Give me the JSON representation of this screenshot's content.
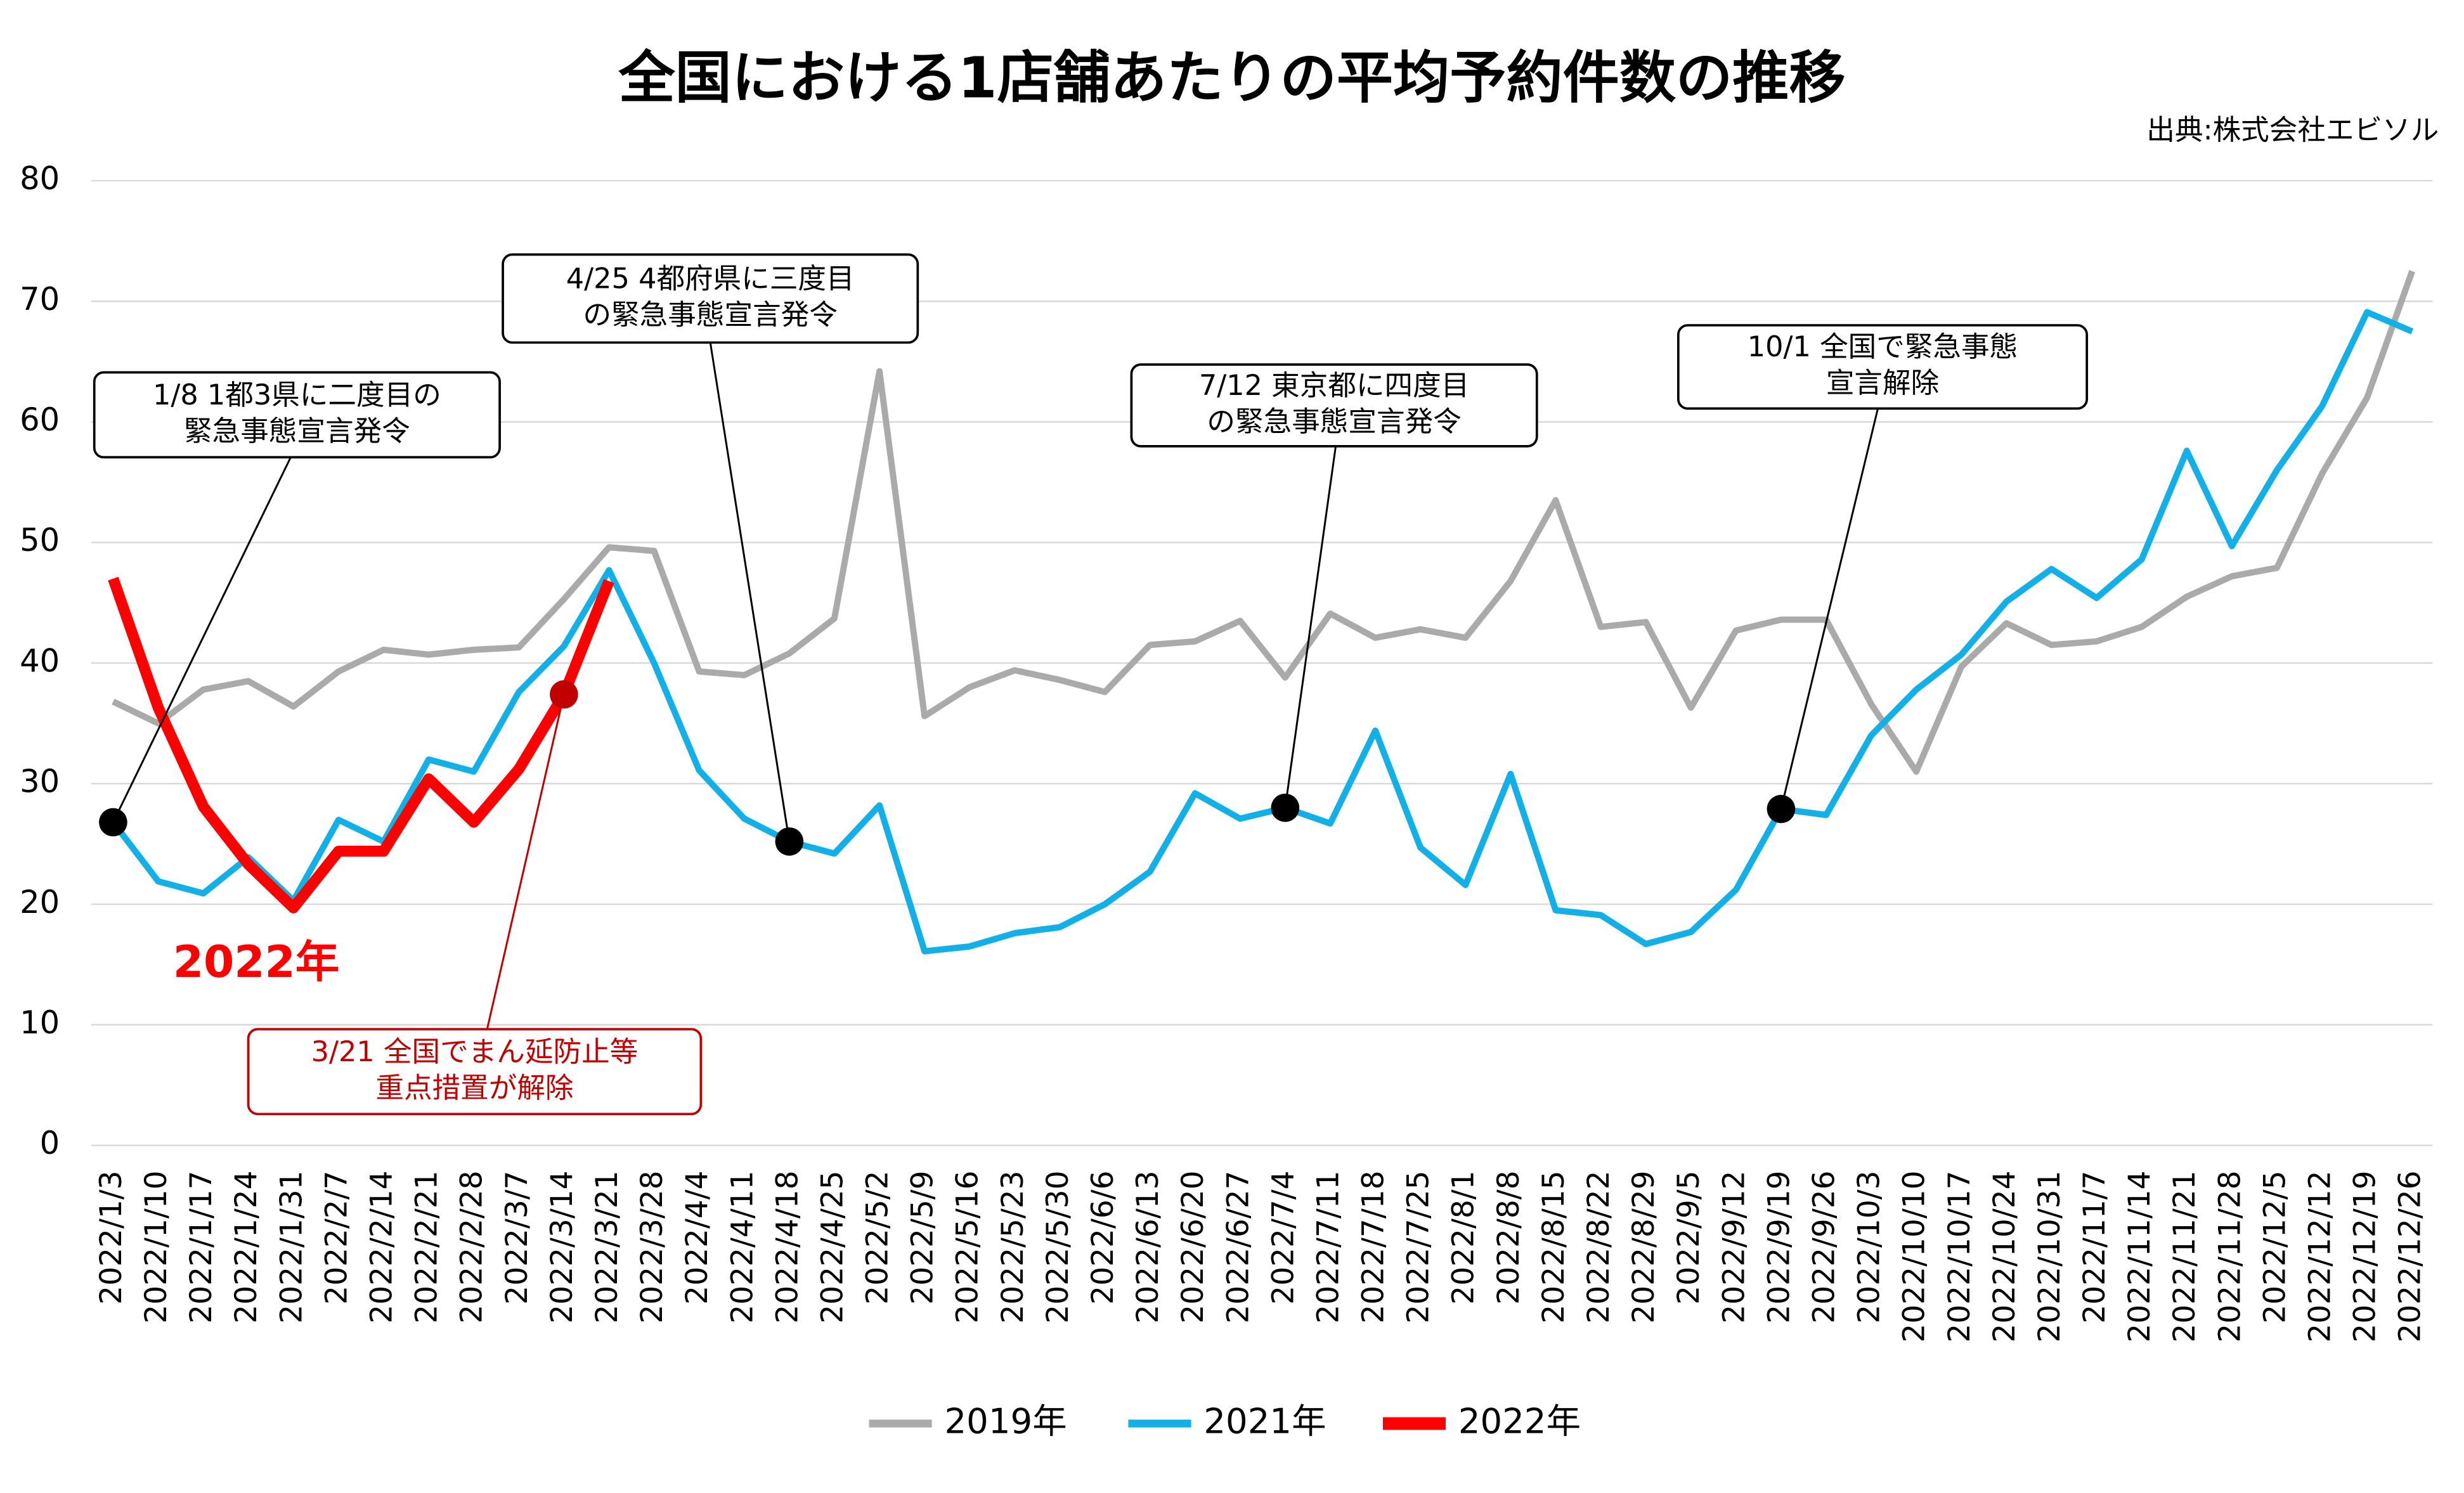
{
  "chart_data": {
    "type": "line",
    "title": "全国における1店舗あたりの平均予約件数の推移",
    "source": "出典:株式会社エビソル",
    "categories": [
      "2022/1/3",
      "2022/1/10",
      "2022/1/17",
      "2022/1/24",
      "2022/1/31",
      "2022/2/7",
      "2022/2/14",
      "2022/2/21",
      "2022/2/28",
      "2022/3/7",
      "2022/3/14",
      "2022/3/21",
      "2022/3/28",
      "2022/4/4",
      "2022/4/11",
      "2022/4/18",
      "2022/4/25",
      "2022/5/2",
      "2022/5/9",
      "2022/5/16",
      "2022/5/23",
      "2022/5/30",
      "2022/6/6",
      "2022/6/13",
      "2022/6/20",
      "2022/6/27",
      "2022/7/4",
      "2022/7/11",
      "2022/7/18",
      "2022/7/25",
      "2022/8/1",
      "2022/8/8",
      "2022/8/15",
      "2022/8/22",
      "2022/8/29",
      "2022/9/5",
      "2022/9/12",
      "2022/9/19",
      "2022/9/26",
      "2022/10/3",
      "2022/10/10",
      "2022/10/17",
      "2022/10/24",
      "2022/10/31",
      "2022/11/7",
      "2022/11/14",
      "2022/11/21",
      "2022/11/28",
      "2022/12/5",
      "2022/12/12",
      "2022/12/19",
      "2022/12/26"
    ],
    "series": [
      {
        "name": "2019年",
        "color": "#aaaaaa",
        "values": [
          36.8,
          35,
          37.8,
          38.5,
          36.4,
          39.3,
          41.1,
          40.7,
          41.1,
          41.3,
          45.3,
          49.6,
          49.3,
          39.3,
          39,
          40.8,
          43.7,
          64.2,
          35.6,
          38,
          39.4,
          38.6,
          37.6,
          41.5,
          41.8,
          43.5,
          38.8,
          44.1,
          42.1,
          42.8,
          42.1,
          46.8,
          53.5,
          43,
          43.4,
          36.3,
          42.7,
          43.6,
          43.6,
          36.6,
          31,
          39.7,
          43.3,
          41.5,
          41.8,
          43,
          45.5,
          47.2,
          47.9,
          55.7,
          62,
          72.5
        ]
      },
      {
        "name": "2021年",
        "color": "#13b0e8",
        "values": [
          26.8,
          21.9,
          20.9,
          23.9,
          20.3,
          27,
          25.2,
          32,
          31,
          37.6,
          41.4,
          47.7,
          40,
          31.1,
          27.1,
          25.2,
          24.2,
          28.2,
          16.1,
          16.5,
          17.6,
          18.1,
          20,
          22.7,
          29.2,
          27.1,
          28,
          26.7,
          34.4,
          24.7,
          21.6,
          30.8,
          19.5,
          19.1,
          16.7,
          17.7,
          21.2,
          27.9,
          27.4,
          34,
          37.8,
          40.7,
          45.1,
          47.8,
          45.4,
          48.6,
          57.6,
          49.7,
          56,
          61.3,
          69.1,
          67.5
        ]
      },
      {
        "name": "2022年",
        "color": "#ff0000",
        "values": [
          47,
          36.3,
          28.1,
          23.3,
          19.7,
          24.4,
          24.4,
          30.4,
          26.8,
          31.2,
          37.4,
          46.8,
          null,
          null,
          null,
          null,
          null,
          null,
          null,
          null,
          null,
          null,
          null,
          null,
          null,
          null,
          null,
          null,
          null,
          null,
          null,
          null,
          null,
          null,
          null,
          null,
          null,
          null,
          null,
          null,
          null,
          null,
          null,
          null,
          null,
          null,
          null,
          null,
          null,
          null,
          null,
          null
        ]
      }
    ],
    "ylim": [
      0,
      80
    ],
    "yticks": [
      0,
      10,
      20,
      30,
      40,
      50,
      60,
      70,
      80
    ],
    "grid": true,
    "legend": "bottom",
    "series_label": "2022年",
    "annotations": [
      {
        "lines": [
          "1/8  1都3県に二度目の",
          "緊急事態宣言発令"
        ]
      },
      {
        "lines": [
          "4/25  4都府県に三度目",
          "の緊急事態宣言発令"
        ]
      },
      {
        "lines": [
          "7/12  東京都に四度目",
          "の緊急事態宣言発令"
        ]
      },
      {
        "lines": [
          "10/1  全国で緊急事態",
          "宣言解除"
        ]
      },
      {
        "lines": [
          "3/21  全国でまん延防止等",
          "重点措置が解除"
        ],
        "color": "#c00000"
      }
    ]
  }
}
